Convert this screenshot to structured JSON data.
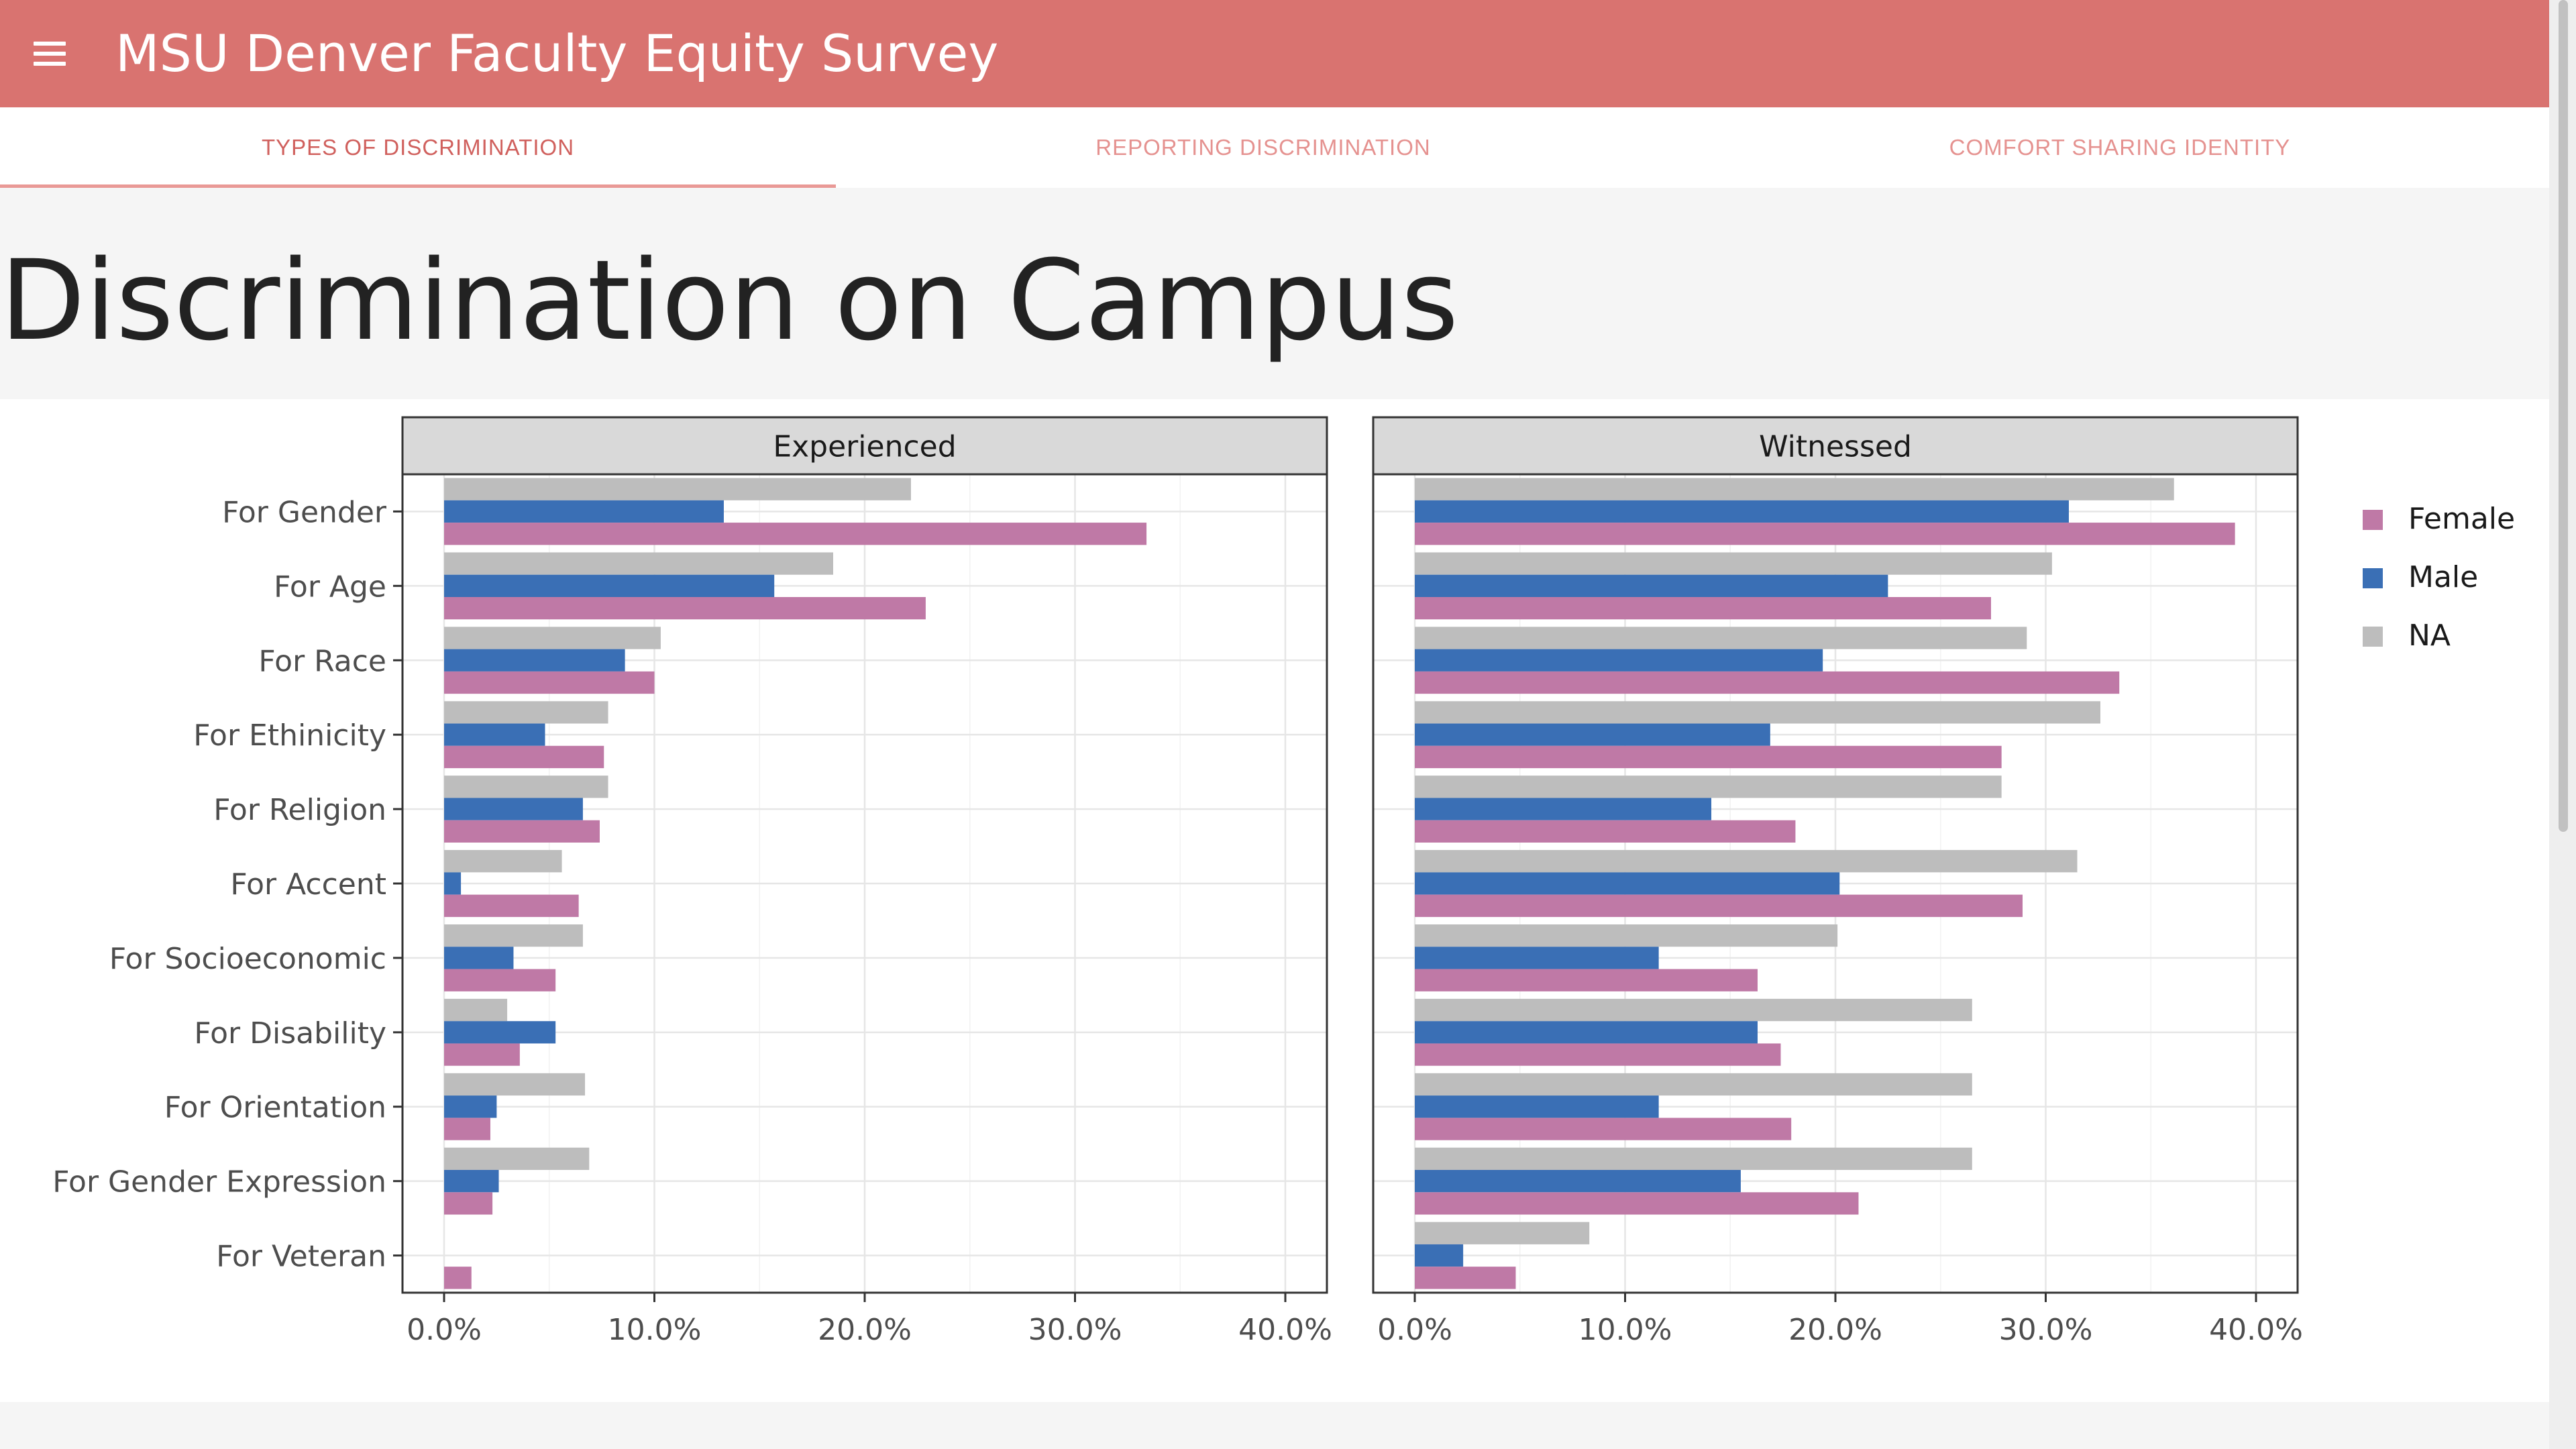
{
  "app": {
    "title": "MSU Denver Faculty Equity Survey"
  },
  "tabs": [
    {
      "label": "TYPES OF DISCRIMINATION"
    },
    {
      "label": "REPORTING DISCRIMINATION"
    },
    {
      "label": "COMFORT SHARING IDENTITY"
    }
  ],
  "page": {
    "title": "Discrimination on Campus"
  },
  "colors": {
    "Female": "#bf79a6",
    "Male": "#3a6fb5",
    "NA": "#bdbdbd"
  },
  "chart_data": {
    "type": "bar",
    "orientation": "horizontal",
    "facets": [
      "Experienced",
      "Witnessed"
    ],
    "categories": [
      "For Gender",
      "For Age",
      "For Race",
      "For Ethinicity",
      "For Religion",
      "For Accent",
      "For Socioeconomic",
      "For Disability",
      "For Orientation",
      "For Gender Expression",
      "For Veteran"
    ],
    "series": [
      {
        "name": "Female",
        "values": {
          "Experienced": [
            33.4,
            22.9,
            10.0,
            7.6,
            7.4,
            6.4,
            5.3,
            3.6,
            2.2,
            2.3,
            1.3
          ],
          "Witnessed": [
            39.0,
            27.4,
            33.5,
            27.9,
            18.1,
            28.9,
            16.3,
            17.4,
            17.9,
            21.1,
            4.8
          ]
        }
      },
      {
        "name": "Male",
        "values": {
          "Experienced": [
            13.3,
            15.7,
            8.6,
            4.8,
            6.6,
            0.8,
            3.3,
            5.3,
            2.5,
            2.6,
            0.0
          ],
          "Witnessed": [
            31.1,
            22.5,
            19.4,
            16.9,
            14.1,
            20.2,
            11.6,
            16.3,
            11.6,
            15.5,
            2.3
          ]
        }
      },
      {
        "name": "NA",
        "values": {
          "Experienced": [
            22.2,
            18.5,
            10.3,
            7.8,
            7.8,
            5.6,
            6.6,
            3.0,
            6.7,
            6.9,
            0.0
          ],
          "Witnessed": [
            36.1,
            30.3,
            29.1,
            32.6,
            27.9,
            31.5,
            20.1,
            26.5,
            26.5,
            26.5,
            8.3
          ]
        }
      }
    ],
    "x_ticks": [
      "0.0%",
      "10.0%",
      "20.0%",
      "30.0%",
      "40.0%"
    ],
    "xlim": [
      0,
      40
    ],
    "legend": {
      "position": "right",
      "entries": [
        "Female",
        "Male",
        "NA"
      ]
    },
    "grid": true
  }
}
